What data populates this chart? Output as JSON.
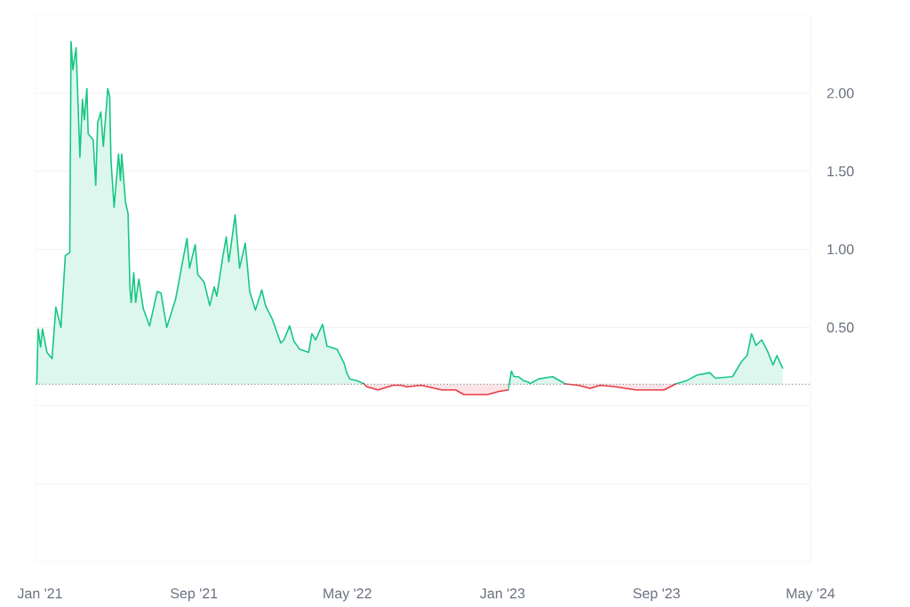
{
  "chart_data": {
    "type": "area",
    "xlim": [
      "2020-12-25",
      "2024-05-01"
    ],
    "xticks": [
      {
        "value": "2021-01-01",
        "label": "Jan '21"
      },
      {
        "value": "2021-09-01",
        "label": "Sep '21"
      },
      {
        "value": "2022-05-01",
        "label": "May '22"
      },
      {
        "value": "2023-01-01",
        "label": "Jan '23"
      },
      {
        "value": "2023-09-01",
        "label": "Sep '23"
      },
      {
        "value": "2024-05-01",
        "label": "May '24"
      }
    ],
    "ylim": [
      -1.0,
      2.5
    ],
    "yticks": [
      {
        "value": -0.5,
        "label": null
      },
      {
        "value": 0,
        "label": null
      },
      {
        "value": 0.5,
        "label": "0.50"
      },
      {
        "value": 1.0,
        "label": "1.00"
      },
      {
        "value": 1.5,
        "label": "1.50"
      },
      {
        "value": 2.0,
        "label": "2.00"
      }
    ],
    "grid": "y",
    "ref_lines": [
      {
        "axis": "y",
        "value": 0.136,
        "color": "#7f8592",
        "line_style": "dotted"
      }
    ],
    "series": [
      {
        "color": "#16c784",
        "x": [
          "2020-12-27",
          "2020-12-29",
          "2021-01-02",
          "2021-01-05",
          "2021-01-12",
          "2021-01-20",
          "2021-01-26",
          "2021-02-03",
          "2021-02-10",
          "2021-02-17",
          "2021-02-19",
          "2021-02-22",
          "2021-02-27",
          "2021-03-05",
          "2021-03-09",
          "2021-03-12",
          "2021-03-16",
          "2021-03-18",
          "2021-03-26",
          "2021-03-30",
          "2021-04-02",
          "2021-04-07",
          "2021-04-11",
          "2021-04-18",
          "2021-04-21",
          "2021-04-23",
          "2021-04-28",
          "2021-05-05",
          "2021-05-08",
          "2021-05-10",
          "2021-05-16",
          "2021-05-20",
          "2021-05-23",
          "2021-05-25",
          "2021-05-29",
          "2021-06-01",
          "2021-06-06",
          "2021-06-13",
          "2021-06-23",
          "2021-07-05",
          "2021-07-11",
          "2021-07-20",
          "2021-08-03",
          "2021-08-14",
          "2021-08-21",
          "2021-08-25",
          "2021-09-03",
          "2021-09-07",
          "2021-09-17",
          "2021-09-26",
          "2021-10-03",
          "2021-10-07",
          "2021-10-16",
          "2021-10-22",
          "2021-10-26",
          "2021-11-05",
          "2021-11-12",
          "2021-11-21",
          "2021-11-28",
          "2021-12-07",
          "2021-12-17",
          "2021-12-23",
          "2022-01-03",
          "2022-01-16",
          "2022-01-21",
          "2022-01-30",
          "2022-02-06",
          "2022-02-15",
          "2022-03-01",
          "2022-03-06",
          "2022-03-12",
          "2022-03-23",
          "2022-03-30",
          "2022-04-15",
          "2022-04-26",
          "2022-04-30",
          "2022-05-05",
          "2022-05-16",
          "2022-05-27",
          "2022-09-01",
          "2023-01-10",
          "2023-01-15",
          "2023-01-19",
          "2023-01-26",
          "2023-02-03",
          "2023-02-11",
          "2023-02-13",
          "2023-02-27",
          "2023-03-21",
          "2023-04-10",
          "2023-06-01",
          "2023-10-01",
          "2023-10-19",
          "2023-11-04",
          "2023-11-24",
          "2023-12-03",
          "2023-12-30",
          "2024-01-13",
          "2024-01-22",
          "2024-01-29",
          "2024-02-05",
          "2024-02-14",
          "2024-02-23",
          "2024-03-03",
          "2024-03-09",
          "2024-03-18"
        ],
        "values": [
          0.138,
          0.49,
          0.375,
          0.49,
          0.34,
          0.3,
          0.63,
          0.5,
          0.96,
          0.98,
          2.33,
          2.15,
          2.29,
          1.59,
          1.96,
          1.83,
          2.03,
          1.74,
          1.7,
          1.41,
          1.81,
          1.88,
          1.66,
          2.03,
          1.98,
          1.57,
          1.27,
          1.61,
          1.44,
          1.61,
          1.3,
          1.23,
          0.75,
          0.66,
          0.85,
          0.66,
          0.81,
          0.62,
          0.51,
          0.73,
          0.72,
          0.5,
          0.68,
          0.92,
          1.07,
          0.88,
          1.03,
          0.84,
          0.79,
          0.64,
          0.76,
          0.7,
          0.94,
          1.08,
          0.92,
          1.22,
          0.88,
          1.04,
          0.73,
          0.61,
          0.74,
          0.64,
          0.55,
          0.4,
          0.42,
          0.51,
          0.41,
          0.36,
          0.34,
          0.46,
          0.42,
          0.52,
          0.38,
          0.36,
          0.27,
          0.21,
          0.17,
          0.16,
          0.14,
          null,
          0.1,
          0.22,
          0.185,
          0.185,
          0.16,
          0.15,
          0.14,
          0.17,
          0.185,
          0.138,
          null,
          0.138,
          0.16,
          0.195,
          0.21,
          0.175,
          0.185,
          0.28,
          0.32,
          0.46,
          0.385,
          0.42,
          0.35,
          0.26,
          0.32,
          0.24
        ]
      },
      {
        "color": "#ea3943",
        "x": [
          "2022-05-27",
          "2022-06-01",
          "2022-06-19",
          "2022-07-12",
          "2022-07-25",
          "2022-08-03",
          "2022-08-26",
          "2022-09-27",
          "2022-10-19",
          "2022-11-01",
          "2022-12-08",
          "2022-12-26",
          "2023-01-10",
          "2023-02-15",
          "2023-04-10",
          "2023-05-01",
          "2023-05-19",
          "2023-06-04",
          "2023-06-29",
          "2023-07-30",
          "2023-08-22",
          "2023-09-13",
          "2023-10-01"
        ],
        "values": [
          0.14,
          0.12,
          0.1,
          0.13,
          0.13,
          0.12,
          0.13,
          0.1,
          0.1,
          0.07,
          0.07,
          0.09,
          0.1,
          null,
          0.138,
          0.13,
          0.11,
          0.13,
          0.12,
          0.1,
          0.1,
          0.1,
          0.138
        ]
      }
    ]
  }
}
